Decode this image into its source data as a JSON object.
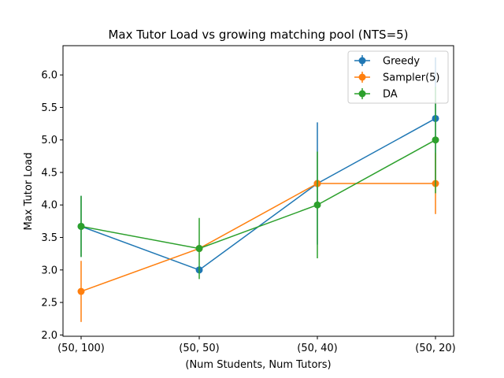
{
  "chart_data": {
    "type": "line",
    "title": "Max Tutor Load vs growing matching pool (NTS=5)",
    "xlabel": "(Num Students, Num Tutors)",
    "ylabel": "Max Tutor Load",
    "categories": [
      "(50, 100)",
      "(50, 50)",
      "(50, 40)",
      "(50, 20)"
    ],
    "ylim": [
      1.98,
      6.45
    ],
    "yticks": [
      2.0,
      2.5,
      3.0,
      3.5,
      4.0,
      4.5,
      5.0,
      5.5,
      6.0
    ],
    "ytick_labels": [
      "2.0",
      "2.5",
      "3.0",
      "3.5",
      "4.0",
      "4.5",
      "5.0",
      "5.5",
      "6.0"
    ],
    "grid": false,
    "legend_position": "top-right",
    "error_bars": true,
    "series": [
      {
        "name": "Greedy",
        "color": "#1f77b4",
        "values": [
          3.67,
          3.0,
          4.33,
          5.33
        ],
        "errors": [
          0.47,
          0.0,
          0.94,
          0.94
        ]
      },
      {
        "name": "Sampler(5)",
        "color": "#ff7f0e",
        "values": [
          2.67,
          3.33,
          4.33,
          4.33
        ],
        "errors": [
          0.47,
          0.0,
          0.0,
          0.47
        ]
      },
      {
        "name": "DA",
        "color": "#2ca02c",
        "values": [
          3.67,
          3.33,
          4.0,
          5.0
        ],
        "errors": [
          0.47,
          0.47,
          0.82,
          0.82
        ]
      }
    ]
  }
}
